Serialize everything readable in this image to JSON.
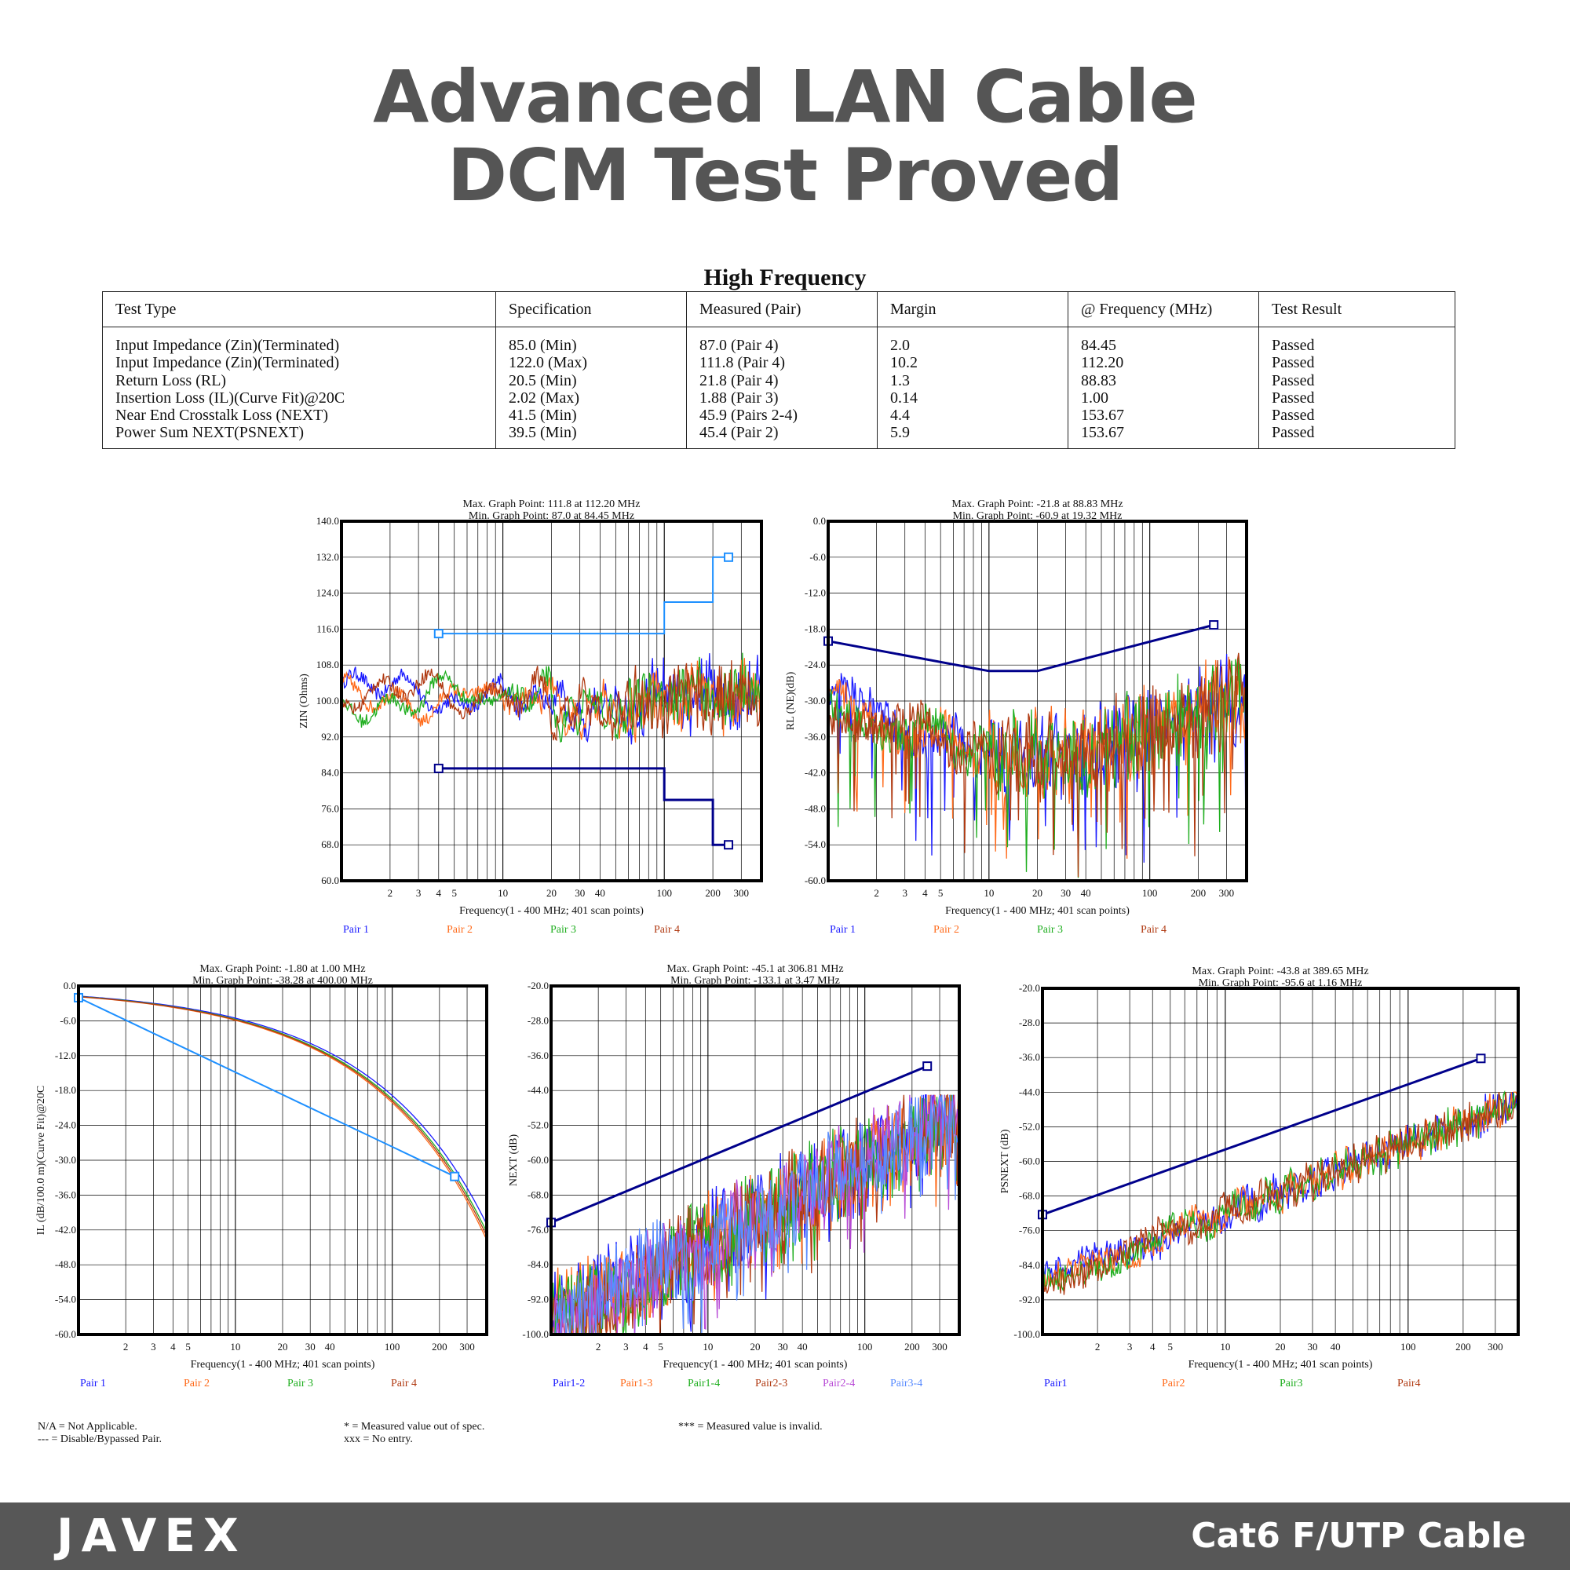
{
  "header": {
    "title_line1": "Advanced LAN Cable",
    "title_line2": "DCM Test Proved"
  },
  "table": {
    "caption": "High Frequency",
    "columns": [
      "Test Type",
      "Specification",
      "Measured (Pair)",
      "Margin",
      "@ Frequency (MHz)",
      "Test Result"
    ],
    "rows": [
      [
        "Input Impedance (Zin)(Terminated)",
        "85.0 (Min)",
        "87.0 (Pair 4)",
        "2.0",
        "84.45",
        "Passed"
      ],
      [
        "Input Impedance (Zin)(Terminated)",
        "122.0 (Max)",
        "111.8 (Pair 4)",
        "10.2",
        "112.20",
        "Passed"
      ],
      [
        "Return Loss (RL)",
        "20.5 (Min)",
        "21.8 (Pair 4)",
        "1.3",
        "88.83",
        "Passed"
      ],
      [
        "Insertion Loss (IL)(Curve Fit)@20C",
        "2.02 (Max)",
        "1.88 (Pair 3)",
        "0.14",
        "1.00",
        "Passed"
      ],
      [
        "Near End Crosstalk Loss (NEXT)",
        "41.5 (Min)",
        "45.9 (Pairs 2-4)",
        "4.4",
        "153.67",
        "Passed"
      ],
      [
        "Power Sum NEXT(PSNEXT)",
        "39.5 (Min)",
        "45.4 (Pair 2)",
        "5.9",
        "153.67",
        "Passed"
      ]
    ]
  },
  "colors": {
    "pair1": "#1a1aff",
    "pair2": "#ff6a1a",
    "pair3": "#1fae1f",
    "pair4": "#b03a12",
    "pair24": "#b84ad6",
    "pair34": "#5a8cff",
    "limit": "#00008b",
    "limit_light": "#1e90ff"
  },
  "chart_data": [
    {
      "id": "zin",
      "type": "line",
      "title": "Max. Graph Point: 111.8 at 112.20 MHz",
      "subtitle": "Min. Graph Point: 87.0 at 84.45 MHz",
      "xlabel": "Frequency(1 - 400 MHz; 401 scan points)",
      "ylabel": "ZIN (Ohms)",
      "xscale": "log",
      "xlim": [
        1,
        400
      ],
      "ylim": [
        60,
        140
      ],
      "yticks": [
        "140.0",
        "132.0",
        "124.0",
        "116.0",
        "108.0",
        "100.0",
        "92.0",
        "84.0",
        "76.0",
        "68.0",
        "60.0"
      ],
      "xticks": [
        "2",
        "3",
        "4",
        "5",
        "10",
        "20",
        "30",
        "40",
        "100",
        "200",
        "300"
      ],
      "limits": [
        {
          "color": "limit_light",
          "points": [
            [
              4,
              115
            ],
            [
              100,
              115
            ],
            [
              100,
              122
            ],
            [
              200,
              122
            ],
            [
              200,
              132
            ],
            [
              250,
              132
            ]
          ]
        },
        {
          "color": "limit",
          "points": [
            [
              4,
              85
            ],
            [
              100,
              85
            ],
            [
              100,
              78
            ],
            [
              200,
              78
            ],
            [
              200,
              68
            ],
            [
              250,
              68
            ]
          ]
        }
      ],
      "legend": [
        "Pair 1",
        "Pair 2",
        "Pair 3",
        "Pair 4"
      ],
      "grid": true
    },
    {
      "id": "rl",
      "type": "line",
      "title": "Max. Graph Point: -21.8 at 88.83 MHz",
      "subtitle": "Min. Graph Point: -60.9 at 19.32 MHz",
      "xlabel": "Frequency(1 - 400 MHz; 401 scan points)",
      "ylabel": "RL (NE)(dB)",
      "xscale": "log",
      "xlim": [
        1,
        400
      ],
      "ylim": [
        -60,
        0
      ],
      "yticks": [
        "0.0",
        "-6.0",
        "-12.0",
        "-18.0",
        "-24.0",
        "-30.0",
        "-36.0",
        "-42.0",
        "-48.0",
        "-54.0",
        "-60.0"
      ],
      "xticks": [
        "2",
        "3",
        "4",
        "5",
        "10",
        "20",
        "30",
        "40",
        "100",
        "200",
        "300"
      ],
      "limits": [
        {
          "color": "limit",
          "points": [
            [
              1,
              -20
            ],
            [
              10,
              -25
            ],
            [
              20,
              -25
            ],
            [
              250,
              -17.3
            ]
          ]
        }
      ],
      "legend": [
        "Pair 1",
        "Pair 2",
        "Pair 3",
        "Pair 4"
      ],
      "grid": true
    },
    {
      "id": "il",
      "type": "line",
      "title": "Max. Graph Point: -1.80 at 1.00 MHz",
      "subtitle": "Min. Graph Point: -38.28 at 400.00 MHz",
      "xlabel": "Frequency(1 - 400 MHz; 401 scan points)",
      "ylabel": "IL (dB/100.0 m)(Curve Fit)@20C",
      "xscale": "log",
      "xlim": [
        1,
        400
      ],
      "ylim": [
        -60,
        0
      ],
      "yticks": [
        "0.0",
        "-6.0",
        "-12.0",
        "-18.0",
        "-24.0",
        "-30.0",
        "-36.0",
        "-42.0",
        "-48.0",
        "-54.0",
        "-60.0"
      ],
      "xticks": [
        "2",
        "3",
        "4",
        "5",
        "10",
        "20",
        "30",
        "40",
        "100",
        "200",
        "300"
      ],
      "limits": [
        {
          "color": "limit_light",
          "points": [
            [
              1,
              -2.02
            ],
            [
              250,
              -32.8
            ]
          ]
        }
      ],
      "legend": [
        "Pair 1",
        "Pair 2",
        "Pair 3",
        "Pair 4"
      ],
      "grid": true
    },
    {
      "id": "next",
      "type": "line",
      "title": "Max. Graph Point: -45.1 at 306.81 MHz",
      "subtitle": "Min. Graph Point: -133.1 at 3.47 MHz",
      "xlabel": "Frequency(1 - 400 MHz; 401 scan points)",
      "ylabel": "NEXT (dB)",
      "xscale": "log",
      "xlim": [
        1,
        400
      ],
      "ylim": [
        -100,
        -20
      ],
      "yticks": [
        "-20.0",
        "-28.0",
        "-36.0",
        "-44.0",
        "-52.0",
        "-60.0",
        "-68.0",
        "-76.0",
        "-84.0",
        "-92.0",
        "-100.0"
      ],
      "xticks": [
        "2",
        "3",
        "4",
        "5",
        "10",
        "20",
        "30",
        "40",
        "100",
        "200",
        "300"
      ],
      "limits": [
        {
          "color": "limit",
          "points": [
            [
              1,
              -74.3
            ],
            [
              250,
              -38.4
            ]
          ]
        }
      ],
      "legend": [
        "Pair1-2",
        "Pair1-3",
        "Pair1-4",
        "Pair2-3",
        "Pair2-4",
        "Pair3-4"
      ],
      "grid": true
    },
    {
      "id": "psnext",
      "type": "line",
      "title": "Max. Graph Point: -43.8 at 389.65 MHz",
      "subtitle": "Min. Graph Point: -95.6 at 1.16 MHz",
      "xlabel": "Frequency(1 - 400 MHz; 401 scan points)",
      "ylabel": "PSNEXT (dB)",
      "xscale": "log",
      "xlim": [
        1,
        400
      ],
      "ylim": [
        -100,
        -20
      ],
      "yticks": [
        "-20.0",
        "-28.0",
        "-36.0",
        "-44.0",
        "-52.0",
        "-60.0",
        "-68.0",
        "-76.0",
        "-84.0",
        "-92.0",
        "-100.0"
      ],
      "xticks": [
        "2",
        "3",
        "4",
        "5",
        "10",
        "20",
        "30",
        "40",
        "100",
        "200",
        "300"
      ],
      "limits": [
        {
          "color": "limit",
          "points": [
            [
              1,
              -72.3
            ],
            [
              250,
              -36.2
            ]
          ]
        }
      ],
      "legend": [
        "Pair1",
        "Pair2",
        "Pair3",
        "Pair4"
      ],
      "grid": true
    }
  ],
  "notes": {
    "na": "N/A = Not Applicable.",
    "disabled": "--- = Disable/Bypassed Pair.",
    "out_of_spec": "*  = Measured value out of spec.",
    "no_entry": "xxx = No entry.",
    "invalid": "*** = Measured value is invalid."
  },
  "footer": {
    "brand": "JAVEX",
    "product": "Cat6 F/UTP Cable"
  }
}
